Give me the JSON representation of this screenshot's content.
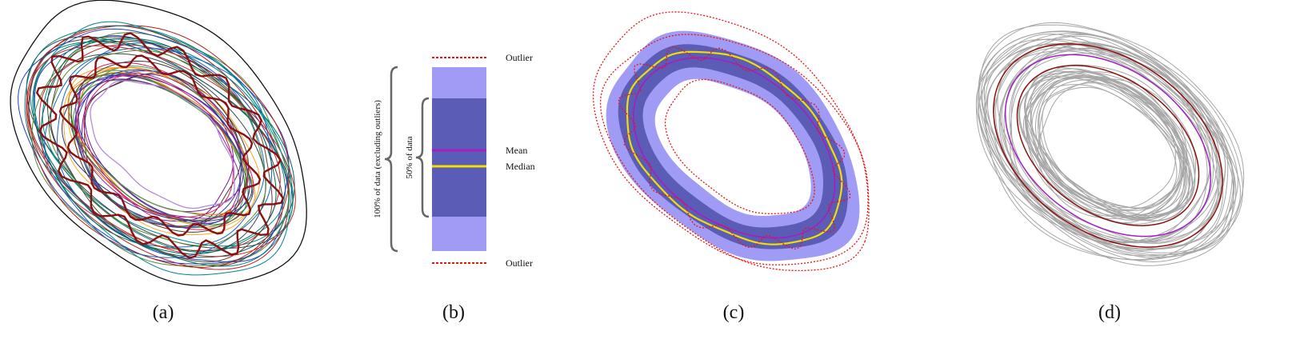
{
  "captions": {
    "a": "(a)",
    "b": "(b)",
    "c": "(c)",
    "d": "(d)"
  },
  "legend": {
    "outlier_top": "Outlier",
    "outlier_bottom": "Outlier",
    "mean": "Mean",
    "median": "Median",
    "range_100": "100% of data (excluding outliers)",
    "range_50": "50% of data"
  },
  "colors": {
    "outer_band": "#a09cf5",
    "inner_band": "#5b5cb6",
    "mean": "#a020c0",
    "median": "#f0e000",
    "outlier": "#ee1111",
    "bracket": "#666666",
    "gray_curve": "#a6a6a6",
    "dark_red": "#8b1010"
  }
}
